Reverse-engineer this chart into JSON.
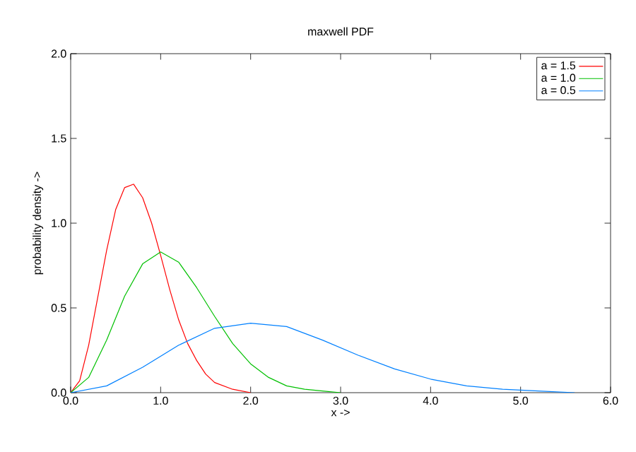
{
  "chart_data": {
    "type": "line",
    "title": "maxwell PDF",
    "xlabel": "x ->",
    "ylabel": "probability density ->",
    "xlim": [
      0,
      6
    ],
    "ylim": [
      0,
      2
    ],
    "xticks": [
      {
        "value": 0,
        "label": "0.0"
      },
      {
        "value": 1,
        "label": "1.0"
      },
      {
        "value": 2,
        "label": "2.0"
      },
      {
        "value": 3,
        "label": "3.0"
      },
      {
        "value": 4,
        "label": "4.0"
      },
      {
        "value": 5,
        "label": "5.0"
      },
      {
        "value": 6,
        "label": "6.0"
      }
    ],
    "yticks": [
      {
        "value": 0,
        "label": "0.0"
      },
      {
        "value": 0.5,
        "label": "0.5"
      },
      {
        "value": 1,
        "label": "1.0"
      },
      {
        "value": 1.5,
        "label": "1.5"
      },
      {
        "value": 2,
        "label": "2.0"
      }
    ],
    "grid": false,
    "legend": "top right",
    "line_style": "solid",
    "series": [
      {
        "name": "a = 1.5",
        "color": "#ff0000",
        "x": [
          0,
          0.1,
          0.2,
          0.3,
          0.4,
          0.5,
          0.6,
          0.7,
          0.8,
          0.9,
          1.0,
          1.1,
          1.2,
          1.3,
          1.4,
          1.5,
          1.6,
          1.8,
          2.0
        ],
        "values": [
          0,
          0.07,
          0.28,
          0.56,
          0.84,
          1.08,
          1.21,
          1.23,
          1.15,
          1.0,
          0.81,
          0.61,
          0.43,
          0.29,
          0.19,
          0.11,
          0.06,
          0.02,
          0.0
        ]
      },
      {
        "name": "a = 1.0",
        "color": "#00c000",
        "x": [
          0,
          0.2,
          0.4,
          0.6,
          0.8,
          1.0,
          1.2,
          1.4,
          1.6,
          1.8,
          2.0,
          2.2,
          2.4,
          2.6,
          2.8,
          3.0
        ],
        "values": [
          0,
          0.09,
          0.31,
          0.57,
          0.76,
          0.83,
          0.77,
          0.62,
          0.45,
          0.29,
          0.17,
          0.09,
          0.04,
          0.02,
          0.01,
          0
        ]
      },
      {
        "name": "a = 0.5",
        "color": "#0080ff",
        "x": [
          0,
          0.4,
          0.8,
          1.2,
          1.6,
          2.0,
          2.4,
          2.8,
          3.2,
          3.6,
          4.0,
          4.4,
          4.8,
          5.2,
          5.6
        ],
        "values": [
          0,
          0.04,
          0.15,
          0.28,
          0.38,
          0.41,
          0.39,
          0.31,
          0.22,
          0.14,
          0.08,
          0.04,
          0.02,
          0.01,
          0
        ]
      }
    ]
  }
}
